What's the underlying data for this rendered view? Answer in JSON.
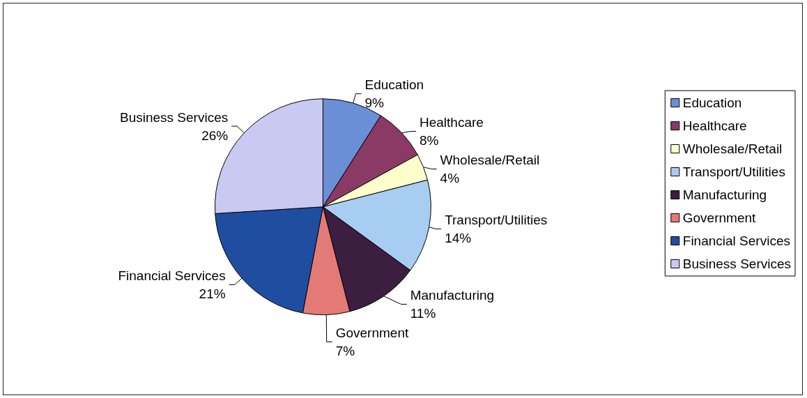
{
  "chart_data": {
    "type": "pie",
    "categories": [
      "Education",
      "Healthcare",
      "Wholesale/Retail",
      "Transport/Utilities",
      "Manufacturing",
      "Government",
      "Financial Services",
      "Business Services"
    ],
    "values": [
      9,
      8,
      4,
      14,
      11,
      7,
      21,
      26
    ],
    "value_labels": [
      "9%",
      "8%",
      "4%",
      "14%",
      "11%",
      "7%",
      "21%",
      "26%"
    ],
    "colors": [
      "#6b8fd6",
      "#8b3a66",
      "#ffffcc",
      "#a8cdf2",
      "#3c1e40",
      "#e47a76",
      "#1f4ea0",
      "#c9c9f2"
    ],
    "legend": "right"
  }
}
